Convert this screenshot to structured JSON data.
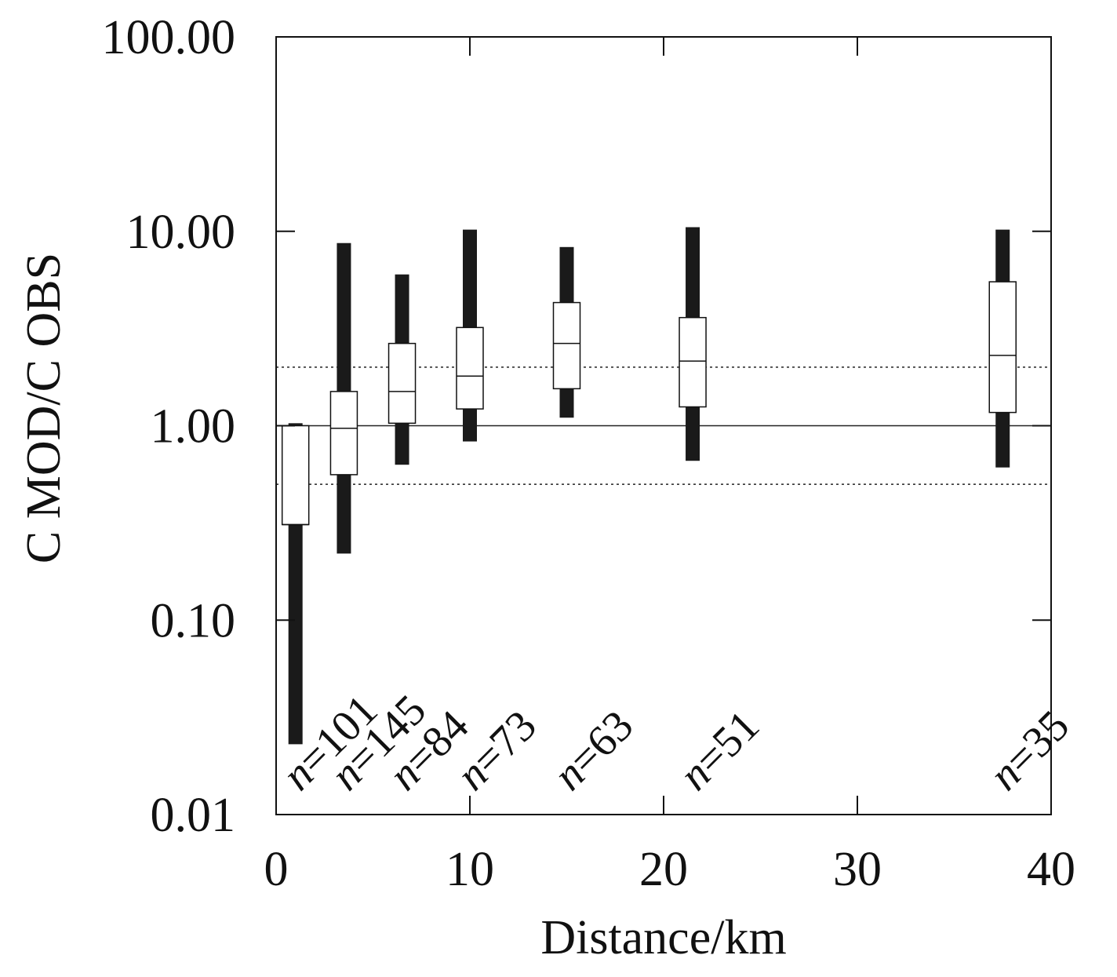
{
  "chart_data": {
    "type": "box",
    "xlabel": "Distance/km",
    "ylabel": "C MOD/C OBS",
    "xlim": [
      0,
      40
    ],
    "ylim": [
      0.01,
      100
    ],
    "yscale": "log",
    "x_ticks": [
      0,
      10,
      20,
      30,
      40
    ],
    "x_tick_labels": [
      "0",
      "10",
      "20",
      "30",
      "40"
    ],
    "y_ticks": [
      0.01,
      0.1,
      1,
      10,
      100
    ],
    "y_tick_labels": [
      "0.01",
      "0.10",
      "1.00",
      "10.00",
      "100.00"
    ],
    "reference_lines": [
      {
        "y": 1,
        "style": "solid"
      },
      {
        "y": 2,
        "style": "dotted"
      },
      {
        "y": 0.5,
        "style": "dotted"
      }
    ],
    "boxes": [
      {
        "x": 1.0,
        "min": 0.023,
        "q1": 0.31,
        "median": 0.31,
        "q3": 1.0,
        "max": 1.03,
        "n_label": "101"
      },
      {
        "x": 3.5,
        "min": 0.22,
        "q1": 0.56,
        "median": 0.97,
        "q3": 1.5,
        "max": 8.7,
        "n_label": "145"
      },
      {
        "x": 6.5,
        "min": 0.63,
        "q1": 1.03,
        "median": 1.5,
        "q3": 2.65,
        "max": 6.0,
        "n_label": "84"
      },
      {
        "x": 10.0,
        "min": 0.83,
        "q1": 1.22,
        "median": 1.8,
        "q3": 3.2,
        "max": 10.2,
        "n_label": "73"
      },
      {
        "x": 15.0,
        "min": 1.1,
        "q1": 1.55,
        "median": 2.65,
        "q3": 4.3,
        "max": 8.3,
        "n_label": "63"
      },
      {
        "x": 21.5,
        "min": 0.66,
        "q1": 1.25,
        "median": 2.15,
        "q3": 3.6,
        "max": 10.5,
        "n_label": "51"
      },
      {
        "x": 37.5,
        "min": 0.61,
        "q1": 1.17,
        "median": 2.3,
        "q3": 5.5,
        "max": 10.2,
        "n_label": "35"
      }
    ],
    "n_prefix": "n",
    "n_equals": "="
  }
}
